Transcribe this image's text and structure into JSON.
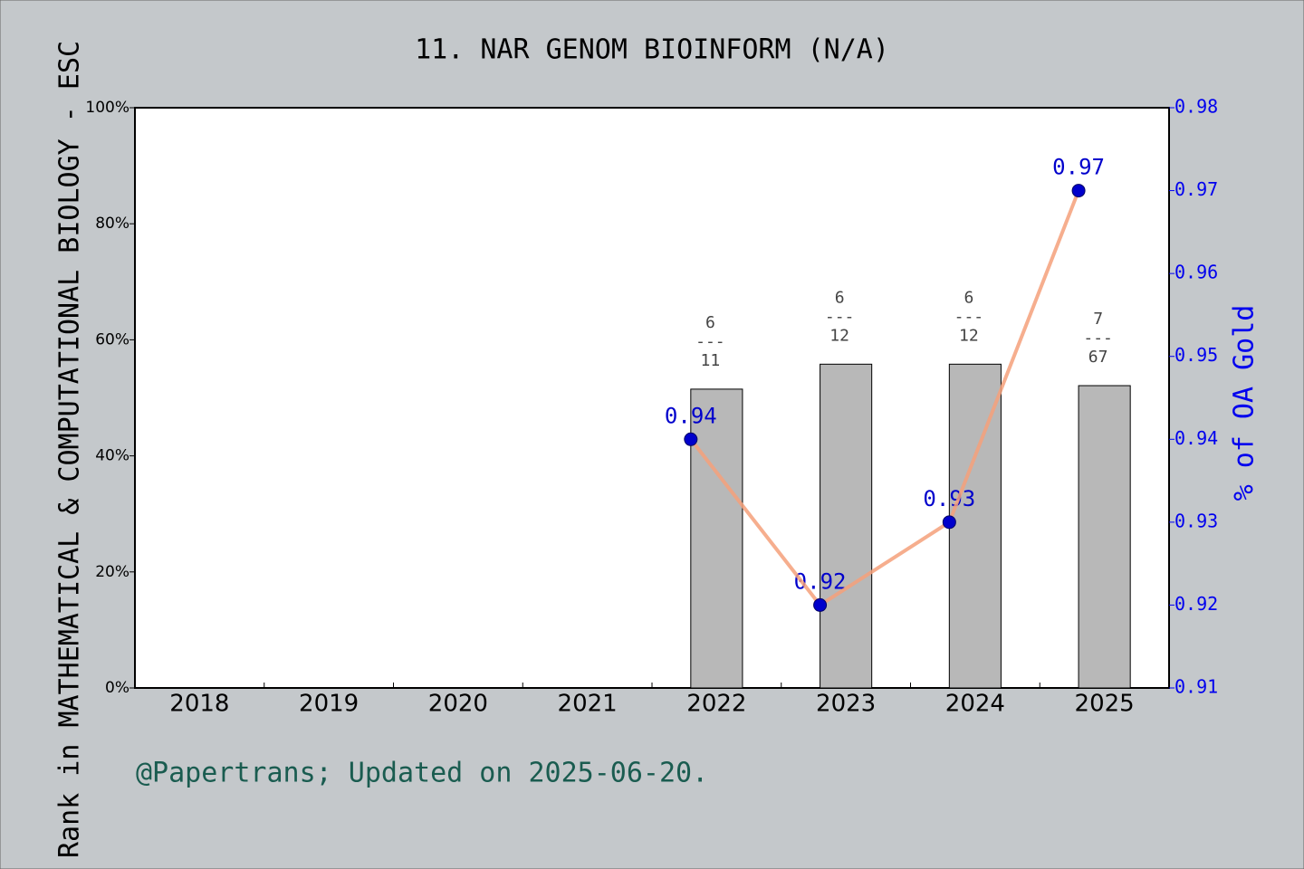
{
  "chart_data": {
    "type": "bar_line",
    "title": "11. NAR GENOM BIOINFORM (N/A)",
    "y_label": "Rank in MATHEMATICAL & COMPUTATIONAL BIOLOGY - ESC",
    "y2_label": "% of OA Gold",
    "footer": "@Papertrans; Updated on 2025-06-20.",
    "categories": [
      "2018",
      "2019",
      "2020",
      "2021",
      "2022",
      "2023",
      "2024",
      "2025"
    ],
    "ylim": [
      0,
      100
    ],
    "yticks": [
      {
        "value": 0,
        "label": "0%"
      },
      {
        "value": 20,
        "label": "20%"
      },
      {
        "value": 40,
        "label": "40%"
      },
      {
        "value": 60,
        "label": "60%"
      },
      {
        "value": 80,
        "label": "80%"
      },
      {
        "value": 100,
        "label": "100%"
      }
    ],
    "y2lim": [
      0.91,
      0.98
    ],
    "y2ticks": [
      0.91,
      0.92,
      0.93,
      0.94,
      0.95,
      0.96,
      0.97,
      0.98
    ],
    "label_separator": "---",
    "series": [
      {
        "type": "bar",
        "color": "#b8b8b8",
        "values": [
          null,
          null,
          null,
          null,
          51.5,
          55.8,
          55.8,
          52.1
        ],
        "ranks": [
          null,
          null,
          null,
          null,
          "6",
          "6",
          "6",
          "7"
        ],
        "totals": [
          null,
          null,
          null,
          null,
          "11",
          "12",
          "12",
          "67"
        ]
      },
      {
        "type": "line",
        "axis": "y2",
        "color": "#f4a07a",
        "marker_color": "#0000cc",
        "values": [
          null,
          null,
          null,
          null,
          0.94,
          0.92,
          0.93,
          0.97
        ]
      }
    ]
  }
}
